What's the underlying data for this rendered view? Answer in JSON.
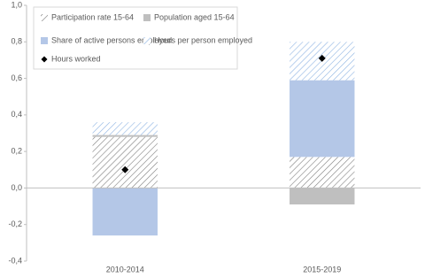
{
  "chart_data": {
    "type": "bar",
    "stacked": true,
    "categories": [
      "2010-2014",
      "2015-2019"
    ],
    "series": [
      {
        "name": "Participation rate 15-64",
        "color": "#7f7f7f",
        "style": "hatch",
        "values": [
          0.28,
          0.17
        ]
      },
      {
        "name": "Population aged 15-64",
        "color": "#bfbfbf",
        "style": "solid",
        "values": [
          0.01,
          -0.09
        ]
      },
      {
        "name": "Share of active persons employed",
        "color": "#b4c7e7",
        "style": "solid",
        "values": [
          -0.26,
          0.42
        ]
      },
      {
        "name": "Hours per person employed",
        "color": "#8fb4e3",
        "style": "hatch",
        "values": [
          0.07,
          0.21
        ]
      },
      {
        "name": "Hours worked",
        "color": "#000000",
        "style": "diamond",
        "values": [
          0.1,
          0.71
        ]
      }
    ],
    "ylim": [
      -0.4,
      1.0
    ],
    "yticks": [
      {
        "value": -0.4,
        "label": "-0,4"
      },
      {
        "value": -0.2,
        "label": "-0,2"
      },
      {
        "value": 0,
        "label": "0,0"
      },
      {
        "value": 0.2,
        "label": "0,2"
      },
      {
        "value": 0.4,
        "label": "0,4"
      },
      {
        "value": 0.6,
        "label": "0,6"
      },
      {
        "value": 0.8,
        "label": "0,8"
      },
      {
        "value": 1.0,
        "label": "1,0"
      }
    ],
    "grid": false,
    "legend": "upper left"
  }
}
